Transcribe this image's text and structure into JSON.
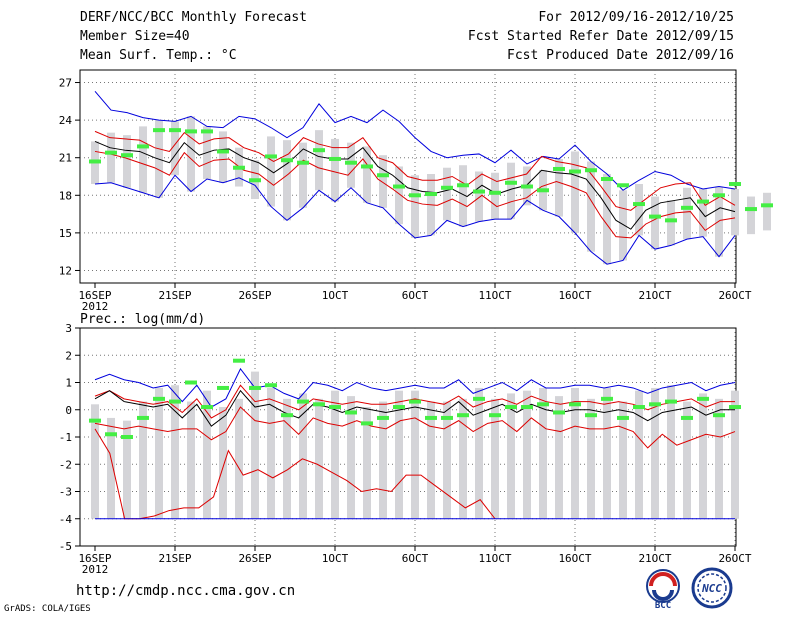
{
  "header": {
    "title": "DERF/NCC/BCC Monthly Forecast",
    "member": "Member Size=40",
    "variable": "Mean Surf. Temp.: °C",
    "period": "For 2012/09/16-2012/10/25",
    "started": "Fcst Started Refer Date 2012/09/15",
    "produced": "Fcst Produced Date 2012/09/16"
  },
  "footer": {
    "url": "http://cmdp.ncc.cma.gov.cn",
    "credit": "GrADS: COLA/IGES"
  },
  "logos": {
    "bcc": "BCC",
    "ncc": "NCC"
  },
  "colors": {
    "envelope": "#0000dd",
    "spread": "#dd0000",
    "mean": "#000000",
    "median": "#44ee44",
    "box": "#d4d4d8"
  },
  "chart_data": [
    {
      "type": "line",
      "title": "Mean Surf. Temp.: °C",
      "x_tick_labels": [
        "16SEP",
        "21SEP",
        "26SEP",
        "1OCT",
        "6OCT",
        "11OCT",
        "16OCT",
        "21OCT",
        "26OCT"
      ],
      "x_tick_days": [
        0,
        5,
        10,
        15,
        20,
        25,
        30,
        35,
        40
      ],
      "x_sublabel": "2012",
      "ylim": [
        11,
        28
      ],
      "yticks": [
        12,
        15,
        18,
        21,
        24,
        27
      ],
      "series": [
        {
          "name": "max",
          "values": [
            26.3,
            24.8,
            24.6,
            24.2,
            24.0,
            23.9,
            24.3,
            23.5,
            23.4,
            24.3,
            24.1,
            23.4,
            22.6,
            23.4,
            25.3,
            23.8,
            24.3,
            23.8,
            24.8,
            23.9,
            22.6,
            21.5,
            21.0,
            21.2,
            21.3,
            20.6,
            21.6,
            20.5,
            21.1,
            20.9,
            22.0,
            20.7,
            19.7,
            18.4,
            19.2,
            19.9,
            19.6,
            18.9,
            18.5,
            18.7,
            18.5
          ]
        },
        {
          "name": "upper",
          "values": [
            23.1,
            22.6,
            22.5,
            22.4,
            21.8,
            21.5,
            23.0,
            22.1,
            22.5,
            22.6,
            21.8,
            21.4,
            20.7,
            21.3,
            22.6,
            22.1,
            21.8,
            21.8,
            22.6,
            21.0,
            20.6,
            19.5,
            19.2,
            19.2,
            19.5,
            18.8,
            19.7,
            19.1,
            19.4,
            19.7,
            21.1,
            20.7,
            20.5,
            20.2,
            18.7,
            17.1,
            16.8,
            17.7,
            18.6,
            18.9,
            19.0,
            17.2,
            17.9,
            17.2
          ]
        },
        {
          "name": "mean",
          "values": [
            22.3,
            21.8,
            21.6,
            21.5,
            21.0,
            20.6,
            22.2,
            21.2,
            21.6,
            21.7,
            21.0,
            20.6,
            19.8,
            20.6,
            21.7,
            21.1,
            20.9,
            20.9,
            21.8,
            20.3,
            19.6,
            18.6,
            18.3,
            18.2,
            18.5,
            17.9,
            18.8,
            18.1,
            18.5,
            18.8,
            20.0,
            19.8,
            19.7,
            19.3,
            17.8,
            16.0,
            15.3,
            16.8,
            17.4,
            17.6,
            17.8,
            16.3,
            17.0,
            16.7
          ]
        },
        {
          "name": "lower",
          "values": [
            21.5,
            21.3,
            21.0,
            20.6,
            20.2,
            19.6,
            21.4,
            20.3,
            20.8,
            20.9,
            20.0,
            19.7,
            18.8,
            19.7,
            20.8,
            20.2,
            19.9,
            19.6,
            20.9,
            19.3,
            18.5,
            17.6,
            17.3,
            17.2,
            17.7,
            17.1,
            18.0,
            17.1,
            17.5,
            17.8,
            18.7,
            19.1,
            18.7,
            18.2,
            16.3,
            14.7,
            14.6,
            15.7,
            16.3,
            16.6,
            16.7,
            15.2,
            16.0,
            16.2
          ]
        },
        {
          "name": "min",
          "values": [
            18.9,
            19.0,
            18.6,
            18.2,
            17.8,
            19.6,
            18.3,
            19.3,
            19.0,
            19.4,
            18.8,
            17.1,
            16.0,
            17.0,
            18.4,
            17.5,
            18.6,
            17.4,
            17.0,
            15.7,
            14.6,
            14.8,
            16.0,
            15.5,
            15.9,
            16.1,
            16.1,
            17.6,
            16.8,
            16.3,
            15.0,
            13.5,
            12.5,
            12.8,
            14.8,
            13.7,
            14.0,
            14.5,
            14.7,
            13.1,
            14.8
          ]
        },
        {
          "name": "median",
          "values": [
            20.7,
            21.4,
            21.2,
            21.9,
            23.2,
            23.2,
            23.1,
            23.1,
            21.5,
            20.2,
            19.2,
            21.1,
            20.8,
            20.6,
            21.6,
            20.9,
            20.6,
            20.3,
            19.6,
            18.7,
            18.0,
            18.1,
            18.6,
            18.8,
            18.3,
            18.2,
            19.0,
            18.7,
            18.4,
            20.1,
            19.9,
            20.0,
            19.3,
            18.8,
            17.3,
            16.3,
            16.0,
            17.0,
            17.5,
            18.0,
            18.9,
            16.9,
            17.2
          ]
        }
      ]
    },
    {
      "type": "line",
      "title": "Prec.: log(mm/d)",
      "x_tick_labels": [
        "16SEP",
        "21SEP",
        "26SEP",
        "1OCT",
        "6OCT",
        "11OCT",
        "16OCT",
        "21OCT",
        "26OCT"
      ],
      "x_tick_days": [
        0,
        5,
        10,
        15,
        20,
        25,
        30,
        35,
        40
      ],
      "x_sublabel": "2012",
      "ylim": [
        -5,
        3
      ],
      "yticks": [
        -5,
        -4,
        -3,
        -2,
        -1,
        0,
        1,
        2,
        3
      ],
      "series": [
        {
          "name": "max",
          "values": [
            1.1,
            1.3,
            1.1,
            1.0,
            0.8,
            0.9,
            0.3,
            0.9,
            0.1,
            0.4,
            1.5,
            0.8,
            0.9,
            0.6,
            0.4,
            1.0,
            0.9,
            0.7,
            1.0,
            0.8,
            0.7,
            0.8,
            0.9,
            0.8,
            0.8,
            1.1,
            0.6,
            0.8,
            1.0,
            0.7,
            1.1,
            0.8,
            0.8,
            0.9,
            0.9,
            0.8,
            0.9,
            0.8,
            0.6,
            0.8,
            0.9,
            1.0,
            0.7,
            0.9,
            1.0
          ]
        },
        {
          "name": "upper",
          "values": [
            0.5,
            0.7,
            0.4,
            0.3,
            0.2,
            0.3,
            -0.1,
            0.4,
            -0.3,
            0.0,
            0.9,
            0.3,
            0.4,
            0.2,
            0.0,
            0.4,
            0.3,
            0.2,
            0.3,
            0.2,
            0.2,
            0.3,
            0.4,
            0.3,
            0.2,
            0.5,
            0.1,
            0.3,
            0.4,
            0.2,
            0.5,
            0.3,
            0.2,
            0.3,
            0.3,
            0.2,
            0.3,
            0.2,
            0.0,
            0.2,
            0.3,
            0.4,
            0.1,
            0.3,
            0.3
          ]
        },
        {
          "name": "mean",
          "values": [
            0.4,
            0.7,
            0.3,
            0.2,
            0.1,
            0.2,
            -0.3,
            0.2,
            -0.6,
            -0.2,
            0.7,
            0.1,
            0.2,
            -0.1,
            -0.3,
            0.2,
            0.1,
            -0.1,
            0.1,
            0.0,
            -0.1,
            0.0,
            0.1,
            0.0,
            -0.1,
            0.3,
            -0.2,
            0.0,
            0.2,
            -0.1,
            0.2,
            0.0,
            -0.1,
            0.0,
            0.0,
            -0.1,
            0.0,
            -0.1,
            -0.4,
            -0.1,
            0.0,
            0.1,
            -0.2,
            0.0,
            0.0
          ]
        },
        {
          "name": "lower",
          "values": [
            -0.5,
            -0.6,
            -0.7,
            -0.6,
            -0.7,
            -0.8,
            -0.7,
            -0.7,
            -1.1,
            -0.8,
            0.1,
            -0.4,
            -0.5,
            -0.4,
            -0.9,
            -0.3,
            -0.5,
            -0.6,
            -0.4,
            -0.6,
            -0.7,
            -0.4,
            -0.3,
            -0.6,
            -0.7,
            -0.4,
            -0.8,
            -0.5,
            -0.4,
            -0.8,
            -0.3,
            -0.7,
            -0.8,
            -0.6,
            -0.7,
            -0.7,
            -0.6,
            -0.8,
            -1.4,
            -0.9,
            -1.3,
            -1.1,
            -0.9,
            -1.0,
            -0.8
          ]
        },
        {
          "name": "min",
          "values": [
            -0.7,
            -1.6,
            -4.0,
            -4.0,
            -3.9,
            -3.7,
            -3.6,
            -3.6,
            -3.2,
            -1.5,
            -2.4,
            -2.2,
            -2.5,
            -2.2,
            -1.8,
            -2.0,
            -2.3,
            -2.6,
            -3.0,
            -2.9,
            -3.0,
            -2.4,
            -2.4,
            -2.8,
            -3.2,
            -3.6,
            -3.3,
            -4.0
          ]
        },
        {
          "name": "bottom",
          "values": [
            -4.0,
            -4.0
          ]
        },
        {
          "name": "median",
          "values": [
            -0.4,
            -0.9,
            -1.0,
            -0.3,
            0.4,
            0.3,
            1.0,
            0.1,
            0.8,
            1.8,
            0.8,
            0.9,
            -0.2,
            0.3,
            0.2,
            0.1,
            -0.1,
            -0.5,
            -0.3,
            0.1,
            0.3,
            -0.3,
            -0.3,
            -0.2,
            0.4,
            -0.2,
            0.1,
            0.1,
            0.2,
            -0.1,
            0.2,
            -0.2,
            0.4,
            -0.3,
            0.1,
            0.2,
            0.3,
            -0.3,
            0.4,
            -0.2,
            0.1
          ]
        }
      ]
    }
  ]
}
